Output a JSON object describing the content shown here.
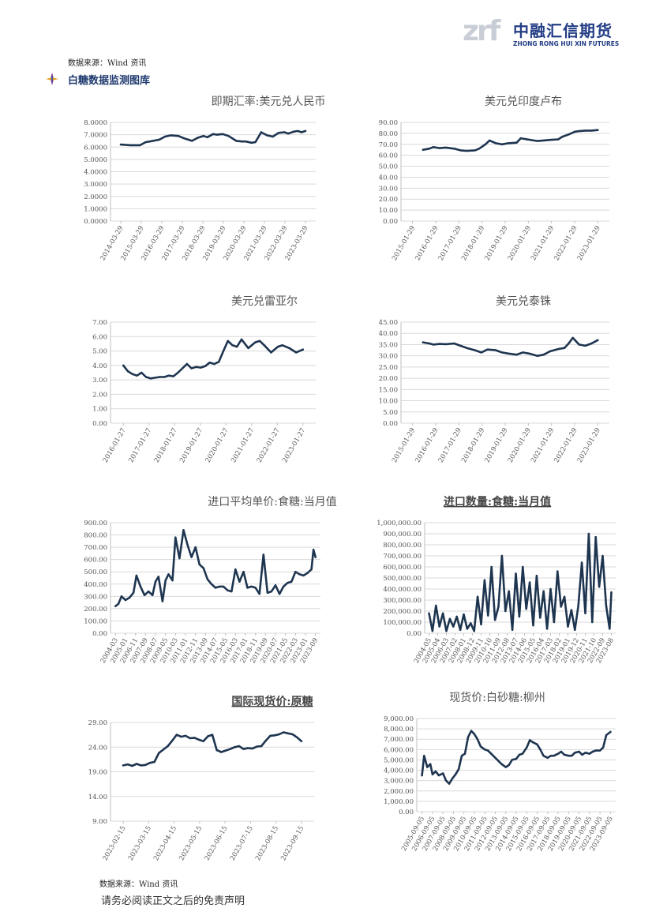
{
  "header": {
    "logo_mark": "zrf",
    "logo_cn": "中融汇信期货",
    "logo_en": "ZHONG RONG HUI XIN FUTURES"
  },
  "source_top": "数据来源：Wind 资讯",
  "section_title": "白糖数据监测图库",
  "source_bottom": "数据来源：Wind 资讯",
  "disclaimer": "请务必阅读正文之后的免责声明",
  "colors": {
    "line": "#1e3550",
    "grid": "#d9d9d9",
    "axis": "#bfbfbf",
    "brand": "#233e86"
  },
  "chart_data": [
    {
      "id": "usdcny",
      "type": "line",
      "title": "即期汇率:美元兑人民币",
      "title_bold": false,
      "yticks": [
        "0.0000",
        "1.0000",
        "2.0000",
        "3.0000",
        "4.0000",
        "5.0000",
        "6.0000",
        "7.0000",
        "8.0000"
      ],
      "ylim": [
        0,
        8
      ],
      "xticks": [
        "2014-03-29",
        "2015-03-29",
        "2016-03-29",
        "2017-03-29",
        "2018-03-29",
        "2019-03-29",
        "2020-03-29",
        "2021-03-29",
        "2022-03-29",
        "2023-03-29"
      ],
      "x": [
        0,
        0.5,
        1,
        1.3,
        1.5,
        2,
        2.3,
        2.6,
        3,
        3.3,
        3.7,
        4,
        4.3,
        4.5,
        4.8,
        5,
        5.3,
        5.6,
        6,
        6.3,
        6.5,
        6.8,
        7,
        7.3,
        7.6,
        7.9,
        8.2,
        8.5,
        8.7,
        9,
        9.2,
        9.4,
        9.6
      ],
      "values": [
        6.2,
        6.15,
        6.15,
        6.4,
        6.45,
        6.6,
        6.85,
        6.95,
        6.9,
        6.7,
        6.5,
        6.75,
        6.9,
        6.8,
        7.05,
        7.0,
        7.05,
        6.9,
        6.5,
        6.45,
        6.45,
        6.35,
        6.4,
        7.2,
        6.95,
        6.85,
        7.15,
        7.2,
        7.1,
        7.25,
        7.3,
        7.2,
        7.3
      ]
    },
    {
      "id": "usdinr",
      "type": "line",
      "title": "美元兑印度卢布",
      "title_bold": false,
      "yticks": [
        "0.00",
        "10.00",
        "20.00",
        "30.00",
        "40.00",
        "50.00",
        "60.00",
        "70.00",
        "80.00",
        "90.00"
      ],
      "ylim": [
        0,
        90
      ],
      "xticks": [
        "2015-01-29",
        "2016-01-29",
        "2017-01-29",
        "2018-01-29",
        "2019-01-29",
        "2020-01-29",
        "2021-01-29",
        "2022-01-29",
        "2023-01-29"
      ],
      "x": [
        0.5,
        0.8,
        1,
        1.3,
        1.6,
        2,
        2.3,
        2.6,
        3,
        3.2,
        3.5,
        3.7,
        4,
        4.3,
        4.6,
        5,
        5.2,
        5.5,
        6,
        6.3,
        6.6,
        7,
        7.2,
        7.5,
        7.8,
        8,
        8.3,
        8.6,
        8.9
      ],
      "values": [
        65.0,
        66.0,
        67.5,
        66.5,
        67.0,
        66.0,
        64.5,
        64.0,
        64.5,
        66.0,
        70.0,
        73.5,
        71.0,
        70.0,
        71.0,
        71.5,
        75.5,
        74.5,
        73.0,
        73.5,
        74.0,
        74.5,
        77.0,
        79.0,
        81.5,
        82.0,
        82.5,
        82.5,
        83.0
      ]
    },
    {
      "id": "usdmyr",
      "type": "line",
      "title": "美元兑雷亚尔",
      "title_bold": false,
      "yticks": [
        "0.00",
        "1.00",
        "2.00",
        "3.00",
        "4.00",
        "5.00",
        "6.00",
        "7.00"
      ],
      "ylim": [
        0,
        7
      ],
      "xticks": [
        "2016-01-27",
        "2017-01-27",
        "2018-01-27",
        "2019-01-27",
        "2020-01-27",
        "2021-01-27",
        "2022-01-27",
        "2023-01-27"
      ],
      "x": [
        0,
        0.2,
        0.4,
        0.6,
        0.8,
        1,
        1.2,
        1.4,
        1.6,
        1.8,
        2,
        2.2,
        2.4,
        2.6,
        2.8,
        3,
        3.2,
        3.4,
        3.6,
        3.8,
        4,
        4.2,
        4.4,
        4.6,
        4.8,
        5,
        5.2,
        5.5,
        5.8,
        6,
        6.2,
        6.5,
        6.8,
        7,
        7.3,
        7.6,
        7.9
      ],
      "values": [
        4.0,
        3.6,
        3.4,
        3.3,
        3.5,
        3.2,
        3.1,
        3.15,
        3.2,
        3.2,
        3.3,
        3.25,
        3.5,
        3.8,
        4.1,
        3.8,
        3.9,
        3.85,
        3.95,
        4.2,
        4.1,
        4.25,
        5.0,
        5.7,
        5.4,
        5.3,
        5.8,
        5.2,
        5.6,
        5.7,
        5.4,
        4.9,
        5.3,
        5.4,
        5.2,
        4.9,
        5.1
      ]
    },
    {
      "id": "usdthb",
      "type": "line",
      "title": "美元兑泰铢",
      "title_bold": false,
      "yticks": [
        "0.00",
        "5.00",
        "10.00",
        "15.00",
        "20.00",
        "25.00",
        "30.00",
        "35.00",
        "40.00",
        "45.00"
      ],
      "ylim": [
        0,
        45
      ],
      "xticks": [
        "2015-01-29",
        "2016-01-29",
        "2017-01-29",
        "2018-01-29",
        "2019-01-29",
        "2020-01-29",
        "2021-01-29",
        "2022-01-29",
        "2023-01-29"
      ],
      "x": [
        0.5,
        0.8,
        1,
        1.3,
        1.6,
        2,
        2.3,
        2.6,
        3,
        3.3,
        3.6,
        4,
        4.3,
        4.6,
        5,
        5.3,
        5.6,
        6,
        6.3,
        6.6,
        7,
        7.3,
        7.5,
        7.7,
        8,
        8.3,
        8.6,
        8.9
      ],
      "values": [
        36.0,
        35.5,
        35.0,
        35.3,
        35.2,
        35.5,
        34.5,
        33.5,
        32.5,
        31.5,
        32.8,
        32.5,
        31.5,
        31.0,
        30.5,
        31.5,
        31.0,
        30.0,
        30.5,
        32.0,
        33.0,
        33.5,
        35.5,
        38.0,
        35.0,
        34.5,
        35.5,
        37.0
      ]
    },
    {
      "id": "import_price",
      "type": "line",
      "title": "进口平均单价:食糖:当月值",
      "title_bold": false,
      "yticks": [
        "0.00",
        "100.00",
        "200.00",
        "300.00",
        "400.00",
        "500.00",
        "600.00",
        "700.00",
        "800.00",
        "900.00"
      ],
      "ylim": [
        0,
        900
      ],
      "xticks": [
        "2004-03",
        "2005-01",
        "2006-11",
        "2007-09",
        "2008-07",
        "2009-05",
        "2010-03",
        "2011-01",
        "2012-11",
        "2013-09",
        "2014-07",
        "2015-05",
        "2016-03",
        "2017-01",
        "2018-11",
        "2019-09",
        "2020-07",
        "2021-05",
        "2022-03",
        "2023-01",
        "2023-09"
      ],
      "x": [
        0,
        0.3,
        0.6,
        1,
        1.4,
        1.8,
        2.1,
        2.5,
        2.9,
        3.3,
        3.7,
        4,
        4.3,
        4.7,
        5,
        5.3,
        5.7,
        6,
        6.4,
        6.8,
        7.2,
        7.6,
        8,
        8.4,
        8.8,
        9.2,
        9.6,
        10,
        10.4,
        10.8,
        11.2,
        11.6,
        12,
        12.4,
        12.8,
        13.2,
        13.6,
        14,
        14.4,
        14.8,
        15.2,
        15.6,
        16,
        16.4,
        16.8,
        17.2,
        17.6,
        18,
        18.4,
        18.8,
        19.2,
        19.6,
        19.8,
        20
      ],
      "values": [
        220,
        240,
        300,
        270,
        290,
        330,
        470,
        380,
        310,
        340,
        310,
        420,
        460,
        260,
        430,
        480,
        430,
        780,
        610,
        840,
        720,
        620,
        700,
        560,
        530,
        440,
        400,
        370,
        380,
        380,
        350,
        340,
        520,
        420,
        500,
        370,
        380,
        370,
        320,
        640,
        330,
        340,
        390,
        320,
        380,
        410,
        420,
        500,
        480,
        470,
        490,
        520,
        680,
        620
      ]
    },
    {
      "id": "import_volume",
      "type": "line",
      "title": "进口数量:食糖:当月值",
      "title_bold": true,
      "yticks": [
        "0.00",
        "100,000.00",
        "200,000.00",
        "300,000.00",
        "400,000.00",
        "500,000.00",
        "600,000.00",
        "700,000.00",
        "800,000.00",
        "900,000.00",
        "1,000,000.00"
      ],
      "ylim": [
        0,
        1000000
      ],
      "xticks": [
        "2004-05",
        "2005-04",
        "2006-03",
        "2007-02",
        "2008-01",
        "2008-12",
        "2009-11",
        "2010-10",
        "2011-09",
        "2012-08",
        "2013-07",
        "2014-06",
        "2015-05",
        "2016-04",
        "2017-03",
        "2018-02",
        "2019-01",
        "2019-12",
        "2020-11",
        "2021-10",
        "2022-09",
        "2023-08"
      ],
      "x": [
        0,
        0.4,
        0.8,
        1.2,
        1.6,
        2,
        2.4,
        2.8,
        3.2,
        3.6,
        4,
        4.4,
        4.8,
        5.2,
        5.6,
        6,
        6.4,
        6.8,
        7.2,
        7.6,
        8,
        8.4,
        8.8,
        9.2,
        9.6,
        10,
        10.4,
        10.8,
        11.2,
        11.6,
        12,
        12.4,
        12.8,
        13.2,
        13.6,
        14,
        14.4,
        14.8,
        15.2,
        15.6,
        16,
        16.4,
        16.8,
        17.2,
        17.6,
        18,
        18.4,
        18.8,
        19.2,
        19.6,
        20,
        20.4,
        20.8,
        21
      ],
      "values": [
        180000,
        20000,
        250000,
        60000,
        180000,
        20000,
        130000,
        60000,
        150000,
        30000,
        170000,
        40000,
        90000,
        20000,
        330000,
        80000,
        480000,
        160000,
        600000,
        120000,
        240000,
        700000,
        200000,
        380000,
        30000,
        540000,
        150000,
        600000,
        220000,
        460000,
        70000,
        520000,
        140000,
        380000,
        40000,
        400000,
        100000,
        560000,
        240000,
        330000,
        60000,
        210000,
        30000,
        250000,
        640000,
        180000,
        900000,
        100000,
        870000,
        420000,
        700000,
        250000,
        40000,
        370000
      ]
    },
    {
      "id": "raw_sugar",
      "type": "line",
      "title": "国际现货价:原糖",
      "title_bold": true,
      "yticks": [
        "9.00",
        "14.00",
        "19.00",
        "24.00",
        "29.00"
      ],
      "ylim": [
        9,
        29
      ],
      "xticks": [
        "2023-02-15",
        "2023-03-15",
        "2023-04-15",
        "2023-05-15",
        "2023-06-15",
        "2023-07-15",
        "2023-08-15",
        "2023-09-15"
      ],
      "x": [
        0,
        0.2,
        0.4,
        0.6,
        0.8,
        1,
        1.2,
        1.4,
        1.6,
        1.8,
        2,
        2.2,
        2.4,
        2.6,
        2.8,
        3,
        3.2,
        3.4,
        3.6,
        3.8,
        4,
        4.2,
        4.4,
        4.6,
        4.8,
        5,
        5.2,
        5.4,
        5.6,
        5.8,
        6,
        6.2,
        6.4,
        6.6,
        6.8,
        7,
        7.2,
        7.4,
        7.6,
        7.8,
        8
      ],
      "values": [
        20.3,
        20.5,
        20.2,
        20.6,
        20.3,
        20.4,
        20.8,
        21.0,
        22.8,
        23.5,
        24.2,
        25.3,
        26.5,
        26.1,
        26.3,
        25.8,
        25.9,
        25.5,
        25.2,
        26.2,
        26.5,
        23.4,
        23.0,
        23.3,
        23.6,
        24.0,
        24.2,
        23.6,
        23.8,
        23.7,
        24.1,
        24.2,
        25.3,
        26.3,
        26.4,
        26.6,
        27.0,
        26.8,
        26.6,
        26.0,
        25.2
      ]
    },
    {
      "id": "liuzhou_sugar",
      "type": "line",
      "title": "现货价:白砂糖:柳州",
      "title_bold": false,
      "yticks": [
        "0.00",
        "1,000.00",
        "2,000.00",
        "3,000.00",
        "4,000.00",
        "5,000.00",
        "6,000.00",
        "7,000.00",
        "8,000.00",
        "9,000.00"
      ],
      "ylim": [
        0,
        9000
      ],
      "xticks": [
        "2005-09-05",
        "2006-09-05",
        "2007-09-05",
        "2008-09-05",
        "2009-09-05",
        "2010-09-05",
        "2011-09-05",
        "2012-09-05",
        "2013-09-05",
        "2014-09-05",
        "2015-09-05",
        "2016-09-05",
        "2017-09-05",
        "2018-09-05",
        "2019-09-05",
        "2020-09-05",
        "2021-09-05",
        "2022-09-05",
        "2023-09-05"
      ],
      "x": [
        0,
        0.2,
        0.5,
        0.8,
        1,
        1.3,
        1.6,
        2,
        2.3,
        2.6,
        2.9,
        3.2,
        3.5,
        3.8,
        4.1,
        4.4,
        4.7,
        5,
        5.3,
        5.6,
        6,
        6.3,
        6.6,
        7,
        7.3,
        7.6,
        8,
        8.3,
        8.6,
        9,
        9.3,
        9.6,
        10,
        10.3,
        10.6,
        11,
        11.3,
        11.6,
        12,
        12.3,
        12.6,
        13,
        13.3,
        13.6,
        14,
        14.3,
        14.6,
        15,
        15.3,
        15.6,
        16,
        16.3,
        16.6,
        17,
        17.3,
        17.6,
        18
      ],
      "values": [
        3500,
        5400,
        4300,
        4600,
        3600,
        3900,
        3500,
        3700,
        3000,
        2700,
        3200,
        3600,
        4100,
        5400,
        5600,
        7200,
        7800,
        7500,
        7000,
        6300,
        6000,
        5900,
        5600,
        5200,
        4900,
        4600,
        4300,
        4500,
        5000,
        5100,
        5500,
        5600,
        6200,
        6900,
        6700,
        6500,
        6000,
        5400,
        5200,
        5400,
        5400,
        5600,
        5800,
        5500,
        5400,
        5400,
        5700,
        5800,
        5500,
        5700,
        5600,
        5800,
        5900,
        5900,
        6200,
        7400,
        7700
      ]
    }
  ]
}
